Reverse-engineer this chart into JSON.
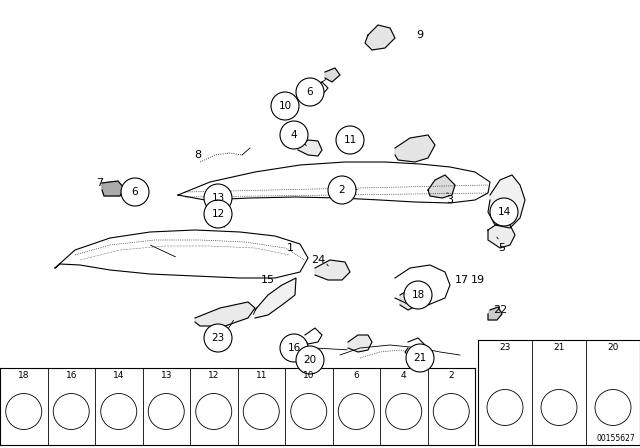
{
  "bg_color": "#ffffff",
  "diagram_id": "00155627",
  "fig_width": 6.4,
  "fig_height": 4.48,
  "dpi": 100
}
